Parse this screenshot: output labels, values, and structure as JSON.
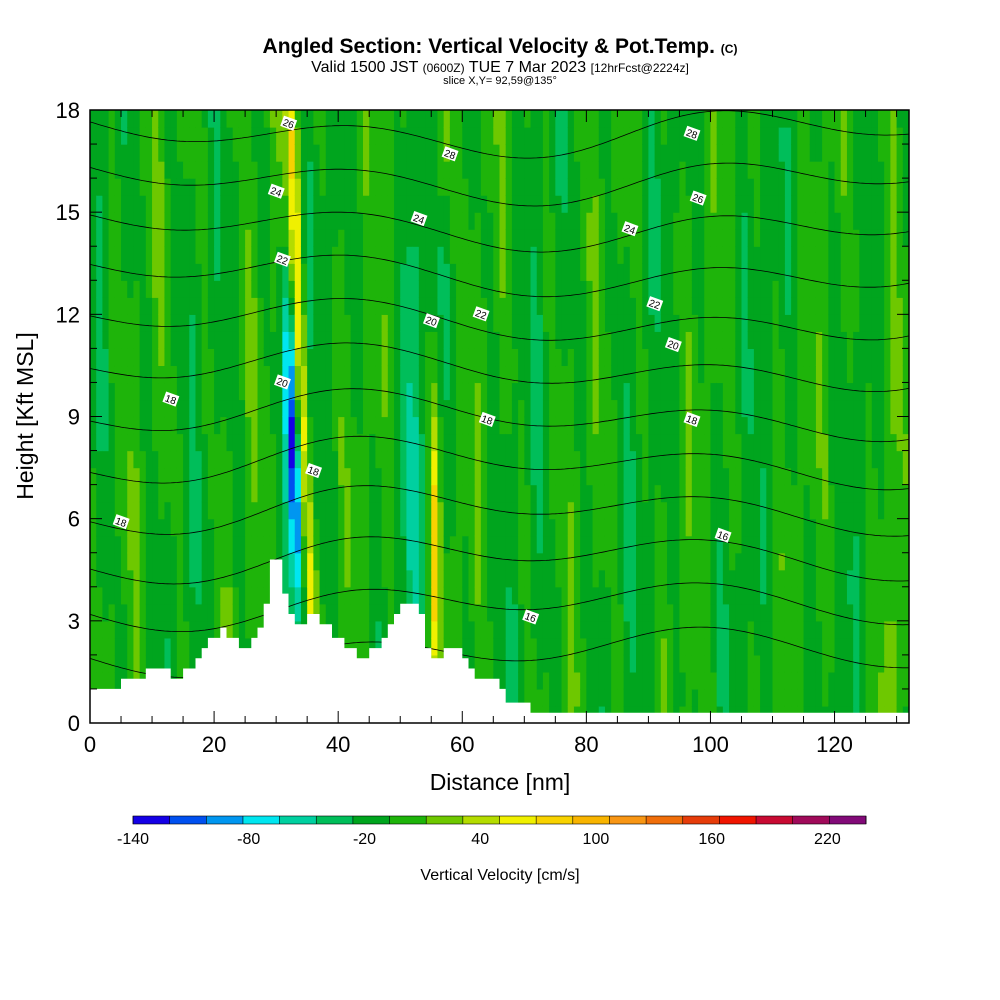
{
  "header": {
    "title_main": "Angled Section: Vertical Velocity & Pot.Temp.",
    "title_c": "(C)",
    "valid_prefix": "Valid 1500 JST",
    "valid_z": "(0600Z)",
    "valid_date": "TUE 7 Mar 2023",
    "valid_fcst": "[12hrFcst@2224z]",
    "slice": "slice X,Y= 92,59@135°"
  },
  "chart_data": {
    "type": "heatmap",
    "xlabel": "Distance [nm]",
    "ylabel": "Height [Kft MSL]",
    "xlim": [
      0,
      132
    ],
    "ylim": [
      0,
      18
    ],
    "x_ticks": [
      0,
      20,
      40,
      60,
      80,
      100,
      120
    ],
    "y_ticks": [
      0,
      3,
      6,
      9,
      12,
      15,
      18
    ],
    "colorbar": {
      "label": "Vertical Velocity [cm/s]",
      "tick_labels": [
        "-140",
        "-80",
        "-20",
        "40",
        "100",
        "160",
        "220"
      ],
      "tick_values": [
        -140,
        -80,
        -20,
        40,
        100,
        160,
        220
      ],
      "range": [
        -140,
        240
      ],
      "colors": [
        "#1400e6",
        "#0050f0",
        "#0096f0",
        "#00e6f0",
        "#00d0a0",
        "#00be5a",
        "#00a51e",
        "#1eb40a",
        "#6ec800",
        "#b4dc00",
        "#f0f000",
        "#f8d200",
        "#f8b400",
        "#f89614",
        "#f06e0a",
        "#e63c0a",
        "#f01400",
        "#c80a32",
        "#a00a5a",
        "#820a78"
      ]
    },
    "terrain_profile": [
      [
        0,
        1.0
      ],
      [
        5,
        1.0
      ],
      [
        5,
        1.3
      ],
      [
        9,
        1.3
      ],
      [
        9,
        1.6
      ],
      [
        13,
        1.6
      ],
      [
        13,
        1.3
      ],
      [
        15,
        1.3
      ],
      [
        15,
        1.6
      ],
      [
        17,
        1.6
      ],
      [
        17,
        1.9
      ],
      [
        18,
        1.9
      ],
      [
        18,
        2.2
      ],
      [
        19,
        2.2
      ],
      [
        19,
        2.5
      ],
      [
        21,
        2.5
      ],
      [
        21,
        2.8
      ],
      [
        22,
        2.8
      ],
      [
        22,
        2.5
      ],
      [
        24,
        2.5
      ],
      [
        24,
        2.2
      ],
      [
        26,
        2.2
      ],
      [
        26,
        2.5
      ],
      [
        27,
        2.5
      ],
      [
        27,
        2.8
      ],
      [
        28,
        2.8
      ],
      [
        28,
        3.5
      ],
      [
        29,
        3.5
      ],
      [
        29,
        4.8
      ],
      [
        31,
        4.8
      ],
      [
        31,
        3.8
      ],
      [
        32,
        3.8
      ],
      [
        32,
        3.2
      ],
      [
        33,
        3.2
      ],
      [
        33,
        2.9
      ],
      [
        35,
        2.9
      ],
      [
        35,
        3.2
      ],
      [
        37,
        3.2
      ],
      [
        37,
        2.9
      ],
      [
        39,
        2.9
      ],
      [
        39,
        2.5
      ],
      [
        41,
        2.5
      ],
      [
        41,
        2.2
      ],
      [
        43,
        2.2
      ],
      [
        43,
        1.9
      ],
      [
        45,
        1.9
      ],
      [
        45,
        2.2
      ],
      [
        47,
        2.2
      ],
      [
        47,
        2.5
      ],
      [
        48,
        2.5
      ],
      [
        48,
        2.9
      ],
      [
        49,
        2.9
      ],
      [
        49,
        3.2
      ],
      [
        50,
        3.2
      ],
      [
        50,
        3.5
      ],
      [
        53,
        3.5
      ],
      [
        53,
        3.2
      ],
      [
        54,
        3.2
      ],
      [
        54,
        2.2
      ],
      [
        55,
        2.2
      ],
      [
        55,
        1.9
      ],
      [
        57,
        1.9
      ],
      [
        57,
        2.2
      ],
      [
        60,
        2.2
      ],
      [
        60,
        1.9
      ],
      [
        61,
        1.9
      ],
      [
        61,
        1.6
      ],
      [
        62,
        1.6
      ],
      [
        62,
        1.3
      ],
      [
        66,
        1.3
      ],
      [
        66,
        1.0
      ],
      [
        67,
        1.0
      ],
      [
        67,
        0.6
      ],
      [
        71,
        0.6
      ],
      [
        71,
        0.3
      ],
      [
        132,
        0.3
      ]
    ],
    "theta_levels": [
      16,
      17,
      18,
      19,
      20,
      21,
      22,
      23,
      24,
      25,
      26,
      27,
      28
    ],
    "contour_labels": [
      {
        "text": "26",
        "x": 32,
        "y": 17.6
      },
      {
        "text": "28",
        "x": 58,
        "y": 16.7
      },
      {
        "text": "28",
        "x": 97,
        "y": 17.3
      },
      {
        "text": "24",
        "x": 30,
        "y": 15.6
      },
      {
        "text": "24",
        "x": 53,
        "y": 14.8
      },
      {
        "text": "26",
        "x": 98,
        "y": 15.4
      },
      {
        "text": "24",
        "x": 87,
        "y": 14.5
      },
      {
        "text": "22",
        "x": 31,
        "y": 13.6
      },
      {
        "text": "22",
        "x": 63,
        "y": 12.0
      },
      {
        "text": "22",
        "x": 91,
        "y": 12.3
      },
      {
        "text": "20",
        "x": 55,
        "y": 11.8
      },
      {
        "text": "20",
        "x": 94,
        "y": 11.1
      },
      {
        "text": "20",
        "x": 31,
        "y": 10.0
      },
      {
        "text": "18",
        "x": 13,
        "y": 9.5
      },
      {
        "text": "18",
        "x": 64,
        "y": 8.9
      },
      {
        "text": "18",
        "x": 97,
        "y": 8.9
      },
      {
        "text": "18",
        "x": 36,
        "y": 7.4
      },
      {
        "text": "18",
        "x": 5,
        "y": 5.9
      },
      {
        "text": "16",
        "x": 102,
        "y": 5.5
      },
      {
        "text": "16",
        "x": 71,
        "y": 3.1
      }
    ]
  }
}
